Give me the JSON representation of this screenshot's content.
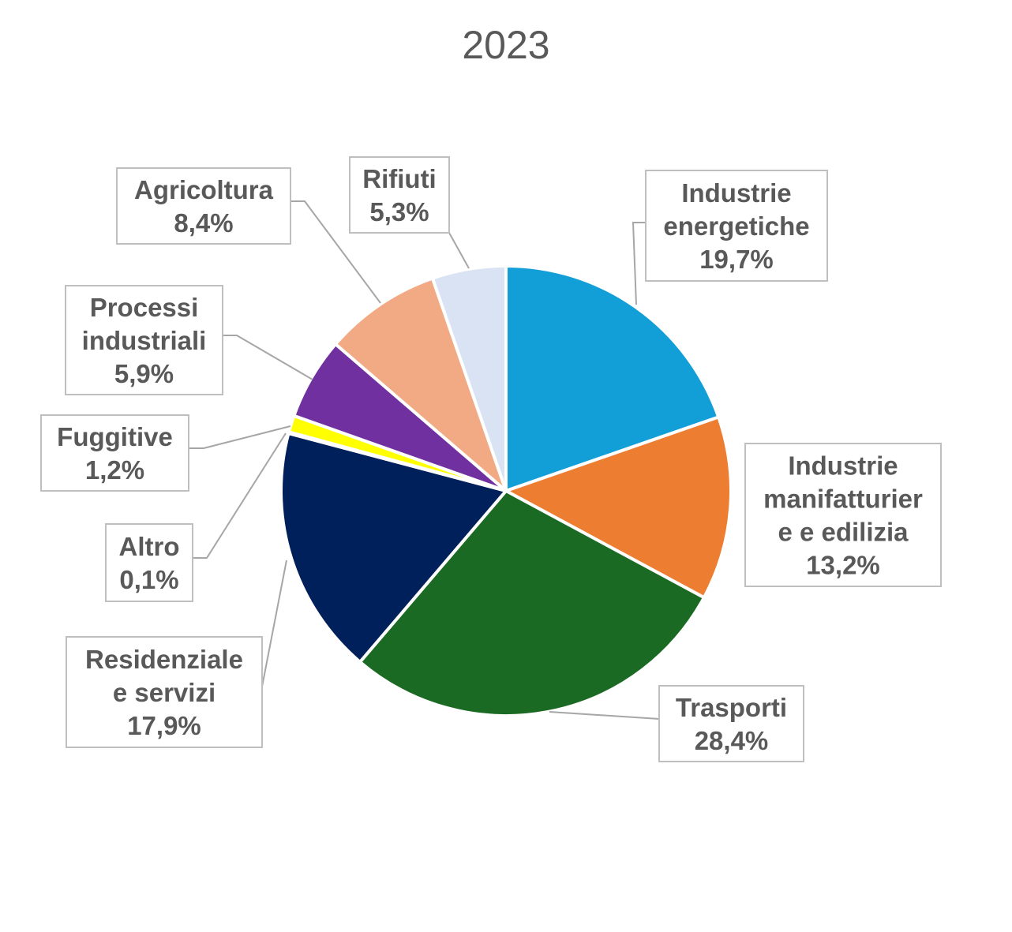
{
  "chart_data": {
    "type": "pie",
    "title": "2023",
    "slices": [
      {
        "label": [
          "Industrie",
          "energetiche"
        ],
        "value_label": "19,7%",
        "value": 19.7,
        "color": "#129ed7"
      },
      {
        "label": [
          "Industrie",
          "manifatturier",
          "e e edilizia"
        ],
        "value_label": "13,2%",
        "value": 13.2,
        "color": "#ed7d31"
      },
      {
        "label": [
          "Trasporti"
        ],
        "value_label": "28,4%",
        "value": 28.4,
        "color": "#1b6a24"
      },
      {
        "label": [
          "Residenziale",
          "e servizi"
        ],
        "value_label": "17,9%",
        "value": 17.9,
        "color": "#00205b"
      },
      {
        "label": [
          "Altro"
        ],
        "value_label": "0,1%",
        "value": 0.1,
        "color": "#4472c4"
      },
      {
        "label": [
          "Fuggitive"
        ],
        "value_label": "1,2%",
        "value": 1.2,
        "color": "#ffff00"
      },
      {
        "label": [
          "Processi",
          "industriali"
        ],
        "value_label": "5,9%",
        "value": 5.9,
        "color": "#7030a0"
      },
      {
        "label": [
          "Agricoltura"
        ],
        "value_label": "8,4%",
        "value": 8.4,
        "color": "#f2aa84"
      },
      {
        "label": [
          "Rifiuti"
        ],
        "value_label": "5,3%",
        "value": 5.3,
        "color": "#dae3f3"
      }
    ],
    "legend": "none",
    "start_angle": "12 o'clock, clockwise"
  }
}
